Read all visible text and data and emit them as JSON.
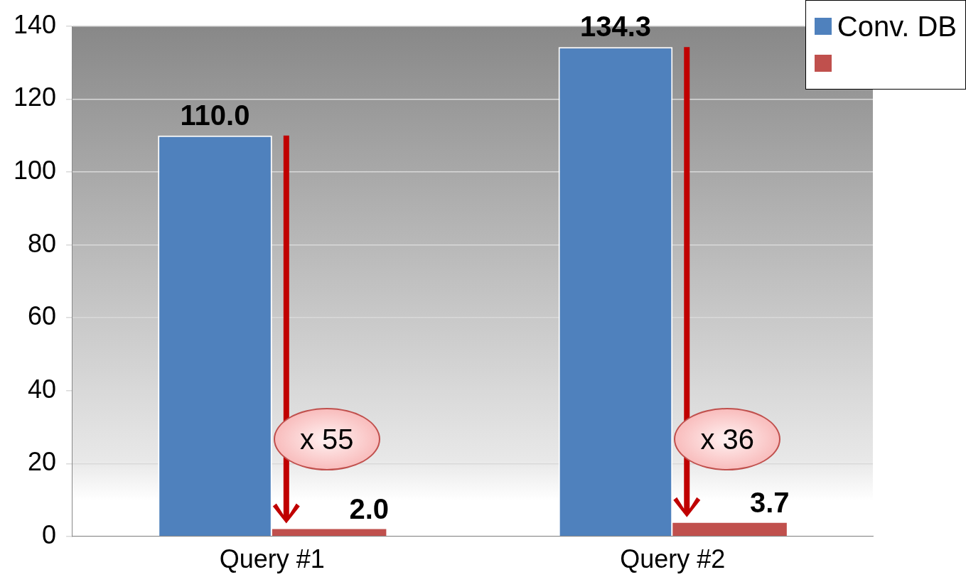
{
  "chart_data": {
    "type": "bar",
    "categories": [
      "Query #1",
      "Query #2"
    ],
    "series": [
      {
        "name": "Conv. DB",
        "color": "#4f81bd",
        "values": [
          110.0,
          134.3
        ],
        "value_labels": [
          "110.0",
          "134.3"
        ]
      },
      {
        "color": "#c0504d",
        "values": [
          2.0,
          3.7
        ],
        "value_labels": [
          "2.0",
          "3.7"
        ]
      }
    ],
    "ylim": [
      0,
      140
    ],
    "yticks": [
      0,
      20,
      40,
      60,
      80,
      100,
      120,
      140
    ],
    "grid": "y",
    "legend": "top right",
    "annotations": [
      "x 55",
      "x 36"
    ]
  }
}
